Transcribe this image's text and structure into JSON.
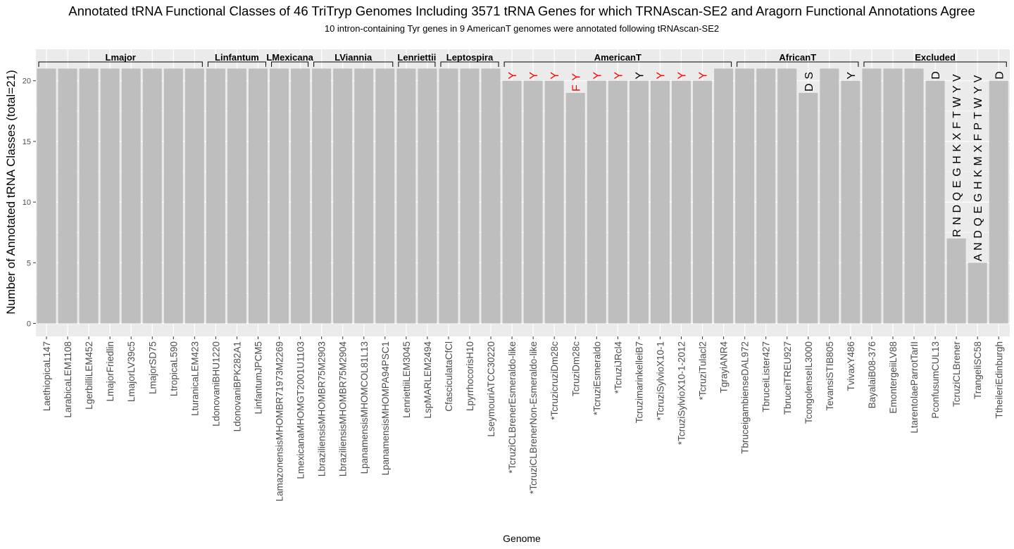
{
  "chart_data": {
    "type": "bar",
    "title": "Annotated tRNA Functional Classes of 46 TriTryp Genomes Including 3571 tRNA Genes for which TRNAscan-SE2 and Aragorn Functional Annotations Agree",
    "subtitle": "10 intron-containing Tyr genes in 9 AmericanT genomes were annotated following tRNAscan-SE2",
    "xlabel": "Genome",
    "ylabel": "Number of Annotated tRNA Classes (total=21)",
    "ylim": [
      0,
      21.5
    ],
    "yticks": [
      0,
      5,
      10,
      15,
      20
    ],
    "grid": true,
    "legend": "none",
    "colors": {
      "bar": "#bebebe",
      "panel": "#ebebeb",
      "grid": "#ffffff",
      "missing_highlight": "#ff0000",
      "missing_normal": "#000000"
    },
    "groups": [
      {
        "name": "Lmajor",
        "start": 0,
        "end": 7
      },
      {
        "name": "Linfantum",
        "start": 8,
        "end": 10
      },
      {
        "name": "LMexicana",
        "start": 11,
        "end": 12
      },
      {
        "name": "LViannia",
        "start": 13,
        "end": 16
      },
      {
        "name": "Lenriettii",
        "start": 17,
        "end": 18
      },
      {
        "name": "Leptospira",
        "start": 19,
        "end": 21
      },
      {
        "name": "AmericanT",
        "start": 22,
        "end": 32
      },
      {
        "name": "AfricanT",
        "start": 33,
        "end": 38
      },
      {
        "name": "Excluded",
        "start": 39,
        "end": 45
      }
    ],
    "categories": [
      "LaethiopicaL147",
      "LarabicaLEM1108",
      "LgerbilliLEM452",
      "LmajorFriedlin",
      "LmajorLV39c5",
      "LmajorSD75",
      "LtropicaL590",
      "LturanicaLEM423",
      "LdonovaniBHU1220",
      "LdonovaniBPK282A1",
      "LinfantumJPCM5",
      "LamazonensisMHOMBR71973M2269",
      "LmexicanaMHOMGT2001U1103",
      "LbraziliensisMHOMBR75M2903",
      "LbraziliensisMHOMBR75M2904",
      "LpanamensisMHOMCOL81L13",
      "LpanamensisMHOMPA94PSC1",
      "LenriettiiLEM3045",
      "LspMARLEM2494",
      "CfasciculataCfCl",
      "LpyrrhocorisH10",
      "LseymouriATCC30220",
      "*TcruziCLBrenerEsmeraldo-like",
      "*TcruziCLBrenerNon-Esmeraldo-like",
      "*TcruzicruziDm28c",
      "TcruziDm28c",
      "*TcruziEsmeraldo",
      "*TcruziJRcl4",
      "TcruzimarinkelleiB7",
      "*TcruziSylvioX10-1",
      "*TcruziSylvioX10-1-2012",
      "*TcruziTulacl2",
      "TgrayiANR4",
      "TbruceigambienseDAL972",
      "TbruceiLister427",
      "TbruceiTREU927",
      "TcongolenseIL3000",
      "TevansiSTIB805",
      "TvivaxY486",
      "BayalaiB08-376",
      "EmontergeiiLV88",
      "LtarentolaeParrotTarII",
      "PconfusumCUL13",
      "TcruziCLBrener",
      "TrangeliSC58",
      "TtheileriEdinburgh"
    ],
    "values": [
      21,
      21,
      21,
      21,
      21,
      21,
      21,
      21,
      21,
      21,
      21,
      21,
      21,
      21,
      21,
      21,
      21,
      21,
      21,
      21,
      21,
      21,
      20,
      20,
      20,
      19,
      20,
      20,
      20,
      20,
      20,
      20,
      21,
      21,
      21,
      21,
      19,
      21,
      20,
      21,
      21,
      21,
      20,
      7,
      5,
      20
    ],
    "missing_classes": [
      "",
      "",
      "",
      "",
      "",
      "",
      "",
      "",
      "",
      "",
      "",
      "",
      "",
      "",
      "",
      "",
      "",
      "",
      "",
      "",
      "",
      "",
      "Y",
      "Y",
      "Y",
      "F Y",
      "Y",
      "Y",
      "Y",
      "Y",
      "Y",
      "Y",
      "",
      "",
      "",
      "",
      "D S",
      "",
      "Y",
      "",
      "",
      "",
      "D",
      "R N D Q E G H K X F T W Y V",
      "A N D Q E G H K M X F P T W Y V",
      "D"
    ],
    "missing_highlight": [
      false,
      false,
      false,
      false,
      false,
      false,
      false,
      false,
      false,
      false,
      false,
      false,
      false,
      false,
      false,
      false,
      false,
      false,
      false,
      false,
      false,
      false,
      true,
      true,
      true,
      true,
      true,
      true,
      false,
      true,
      true,
      true,
      false,
      false,
      false,
      false,
      false,
      false,
      false,
      false,
      false,
      false,
      false,
      false,
      false,
      false
    ]
  }
}
